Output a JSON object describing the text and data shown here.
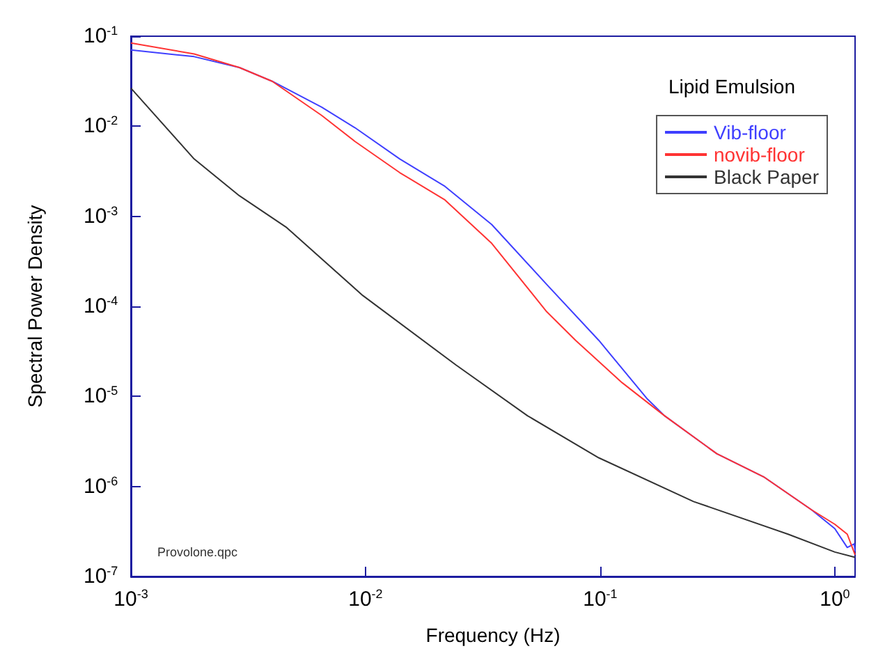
{
  "chart_data": {
    "type": "line",
    "title": "Lipid Emulsion",
    "xlabel": "Frequency (Hz)",
    "ylabel": "Spectral Power Density",
    "log": "xy",
    "grid": false,
    "legend": "top right",
    "marker": "none",
    "line_style": "solid",
    "xlim": [
      0.001,
      1.22
    ],
    "ylim": [
      1e-07,
      0.1
    ],
    "xticks": [
      {
        "value": 0.001,
        "label": "10$^{-3}$"
      },
      {
        "value": 0.01,
        "label": "10$^{-2}$"
      },
      {
        "value": 0.1,
        "label": "10$^{-1}$"
      },
      {
        "value": 1,
        "label": "10$^{0}$"
      }
    ],
    "yticks": [
      {
        "value": 1e-07,
        "label": "10$^{-7}$"
      },
      {
        "value": 1e-06,
        "label": "10$^{-6}$"
      },
      {
        "value": 1e-05,
        "label": "10$^{-5}$"
      },
      {
        "value": 0.0001,
        "label": "10$^{-4}$"
      },
      {
        "value": 0.001,
        "label": "10$^{-3}$"
      },
      {
        "value": 0.01,
        "label": "10$^{-2}$"
      },
      {
        "value": 0.1,
        "label": "10$^{-1}$"
      }
    ],
    "annotations": [
      "Provolone.qpc"
    ],
    "series": [
      {
        "name": "Vib-floor",
        "color": "#3f3fff",
        "x": [
          0.001,
          0.00186,
          0.0029,
          0.004,
          0.0065,
          0.009,
          0.014,
          0.0218,
          0.0345,
          0.0592,
          0.0986,
          0.158,
          0.188,
          0.314,
          0.497,
          0.796,
          1.0,
          1.13,
          1.21,
          1.22
        ],
        "values": [
          0.0705,
          0.0593,
          0.0449,
          0.0316,
          0.0163,
          0.00966,
          0.00433,
          0.00215,
          0.00081,
          0.000175,
          4.2e-05,
          9.5e-06,
          6.1e-06,
          2.31e-06,
          1.28e-06,
          5.5e-07,
          3.4e-07,
          2.1e-07,
          2.3e-07,
          1.9e-07
        ]
      },
      {
        "name": "novib-floor",
        "color": "#ff3333",
        "x": [
          0.001,
          0.00186,
          0.0029,
          0.004,
          0.0065,
          0.009,
          0.014,
          0.0218,
          0.0345,
          0.0592,
          0.0785,
          0.124,
          0.188,
          0.314,
          0.497,
          0.796,
          1.0,
          1.13,
          1.22
        ],
        "values": [
          0.084,
          0.0635,
          0.0449,
          0.0316,
          0.0132,
          0.0068,
          0.00305,
          0.00152,
          0.0005,
          8.7e-05,
          4.2e-05,
          1.42e-05,
          6.1e-06,
          2.31e-06,
          1.28e-06,
          5.5e-07,
          3.8e-07,
          2.95e-07,
          1.74e-07
        ]
      },
      {
        "name": "Black Paper",
        "color": "#333333",
        "x": [
          0.001,
          0.00186,
          0.0029,
          0.00458,
          0.00973,
          0.0243,
          0.049,
          0.0986,
          0.25,
          0.632,
          1.0,
          1.22
        ],
        "values": [
          0.0265,
          0.00433,
          0.00169,
          0.00076,
          0.000132,
          2.23e-05,
          6.1e-06,
          2.08e-06,
          6.8e-07,
          2.95e-07,
          1.87e-07,
          1.63e-07
        ]
      }
    ]
  }
}
